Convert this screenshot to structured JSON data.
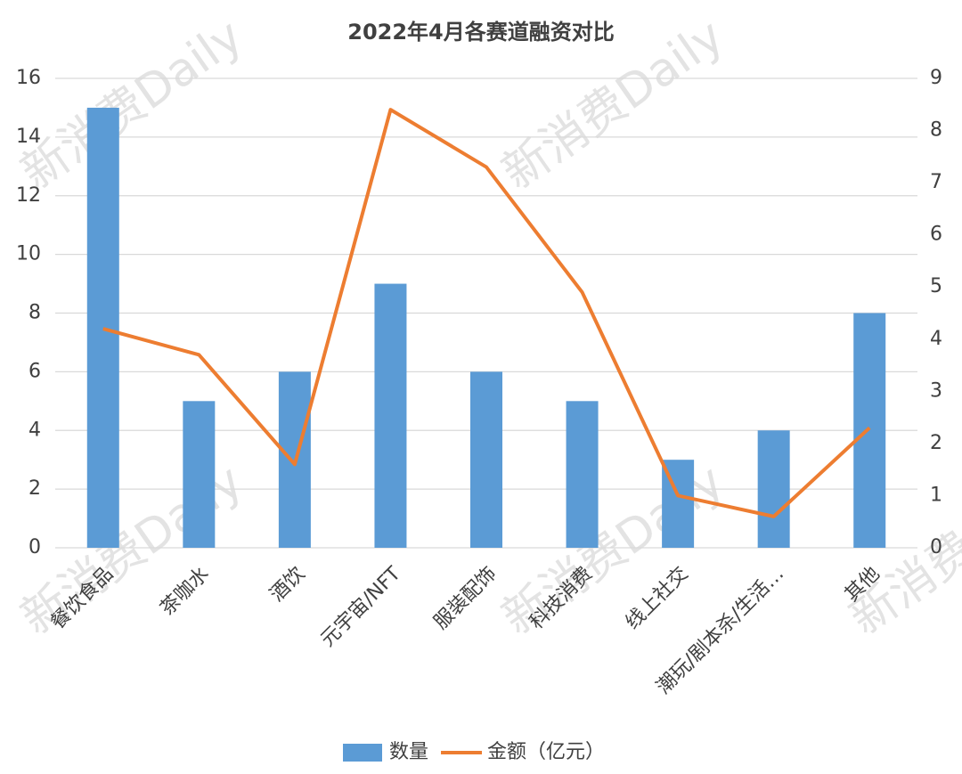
{
  "chart_data": {
    "type": "bar-line",
    "title": "2022年4月各赛道融资对比",
    "watermark": "新消费Daily",
    "categories": [
      "餐饮食品",
      "茶咖水",
      "酒饮",
      "元宇宙/NFT",
      "服装配饰",
      "科技消费",
      "线上社交",
      "潮玩/剧本杀/生活…",
      "其他"
    ],
    "series": [
      {
        "name": "数量",
        "type": "bar",
        "color": "#5b9bd5",
        "values": [
          15,
          5,
          6,
          9,
          6,
          5,
          3,
          4,
          8
        ]
      },
      {
        "name": "金额（亿元）",
        "type": "line",
        "axis": "y2",
        "color": "#ed7d31",
        "values": [
          4.2,
          3.7,
          1.6,
          8.4,
          7.3,
          4.9,
          1.0,
          0.6,
          2.3
        ]
      }
    ],
    "ylim": [
      0,
      16
    ],
    "yticks": [
      0,
      2,
      4,
      6,
      8,
      10,
      12,
      14,
      16
    ],
    "y2lim": [
      0,
      9
    ],
    "y2ticks": [
      0,
      1,
      2,
      3,
      4,
      5,
      6,
      7,
      8,
      9
    ],
    "grid": true,
    "legend": "bottom"
  }
}
